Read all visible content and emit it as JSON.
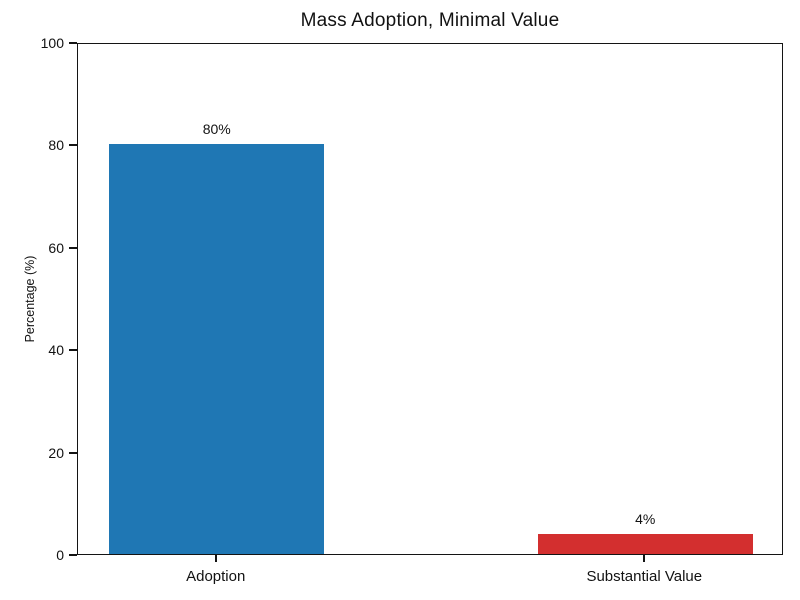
{
  "chart_data": {
    "type": "bar",
    "title": "Mass Adoption, Minimal Value",
    "categories": [
      "Adoption",
      "Substantial Value"
    ],
    "values": [
      80,
      4
    ],
    "bar_labels": [
      "80%",
      "4%"
    ],
    "bar_colors": [
      "#1f77b4",
      "#d32f2f"
    ],
    "xlabel": "",
    "ylabel": "Percentage (%)",
    "ylim": [
      0,
      100
    ],
    "yticks": [
      0,
      20,
      40,
      60,
      80,
      100
    ],
    "grid": false,
    "legend": "none",
    "spine_box": true
  }
}
